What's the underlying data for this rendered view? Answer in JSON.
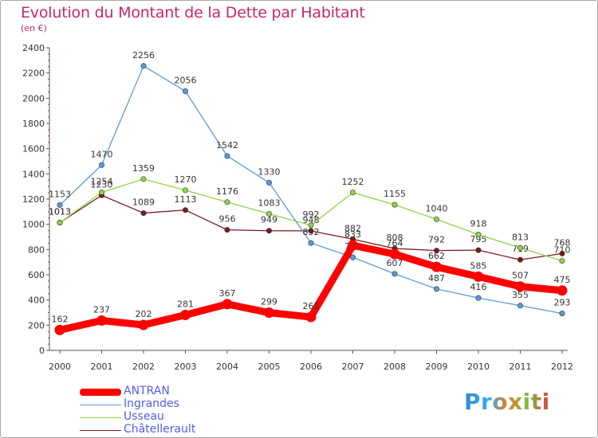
{
  "chart_data": {
    "type": "line",
    "title": "Evolution du Montant de la Dette par Habitant",
    "subtitle": "(en €)",
    "x": [
      "2000",
      "2001",
      "2002",
      "2003",
      "2004",
      "2005",
      "2006",
      "2007",
      "2008",
      "2009",
      "2010",
      "2011",
      "2012"
    ],
    "ylim": [
      0,
      2400
    ],
    "yticks": [
      0,
      200,
      400,
      600,
      800,
      1000,
      1200,
      1400,
      1600,
      1800,
      2000,
      2200,
      2400
    ],
    "grid": false,
    "legend_position": "bottom-left",
    "series": [
      {
        "name": "ANTRAN",
        "color": "#ff0000",
        "values": [
          162,
          237,
          202,
          281,
          367,
          299,
          265,
          833,
          764,
          662,
          585,
          507,
          475
        ]
      },
      {
        "name": "Ingrandes",
        "color": "#5b9bd5",
        "values": [
          1153,
          1470,
          2256,
          2056,
          1542,
          1330,
          852,
          738,
          607,
          487,
          416,
          355,
          293
        ]
      },
      {
        "name": "Usseau",
        "color": "#8fd44a",
        "values": [
          1013,
          1254,
          1359,
          1270,
          1176,
          1083,
          992,
          1252,
          1155,
          1040,
          918,
          813,
          710
        ]
      },
      {
        "name": "Châtellerault",
        "color": "#7a1c1c",
        "values": [
          1013,
          1230,
          1089,
          1113,
          956,
          949,
          948,
          882,
          808,
          792,
          795,
          719,
          768
        ]
      }
    ]
  },
  "logo_text": "Proxiti"
}
